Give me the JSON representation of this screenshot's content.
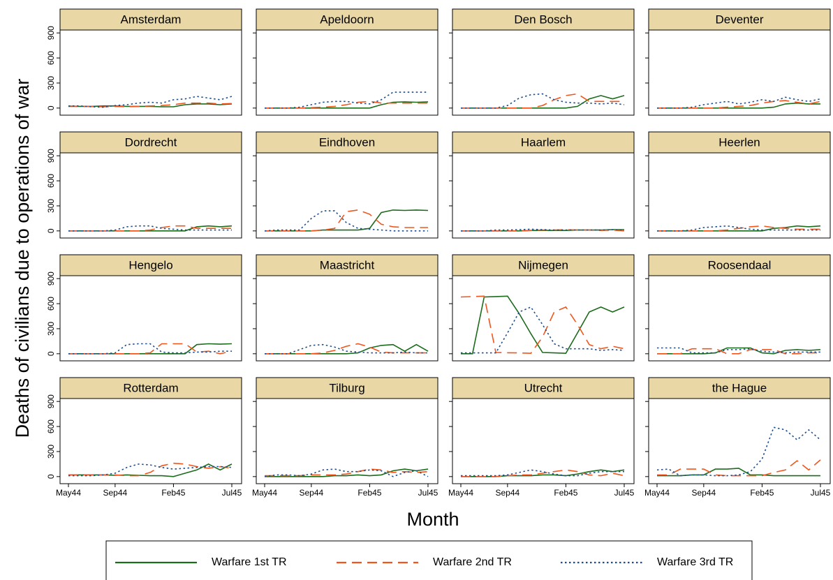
{
  "chart_data": {
    "type": "line",
    "y_label": "Deaths of civilians due to operations of war",
    "x_label": "Month",
    "categories": [
      "May44",
      null,
      null,
      null,
      "Sep44",
      null,
      null,
      null,
      null,
      "Feb45",
      null,
      null,
      null,
      null,
      "Jul45"
    ],
    "ylim": [
      -85,
      935
    ],
    "yticks": [
      0,
      300,
      600,
      900
    ],
    "series": [
      {
        "name": "Warfare 1st TR",
        "color": "#1a6b1a",
        "style": "solid"
      },
      {
        "name": "Warfare 2nd TR",
        "color": "#f0561c",
        "style": "dash"
      },
      {
        "name": "Warfare 3rd TR",
        "color": "#1f4e8c",
        "style": "dot"
      }
    ],
    "panels": [
      {
        "title": "Amsterdam",
        "values": [
          [
            20,
            20,
            20,
            25,
            25,
            20,
            20,
            20,
            15,
            15,
            40,
            50,
            50,
            40,
            50
          ],
          [
            25,
            20,
            20,
            15,
            20,
            15,
            20,
            25,
            30,
            40,
            60,
            60,
            60,
            50,
            55
          ],
          [
            25,
            25,
            15,
            10,
            30,
            40,
            60,
            70,
            60,
            100,
            110,
            140,
            120,
            100,
            140
          ]
        ]
      },
      {
        "title": "Apeldoorn",
        "values": [
          [
            0,
            0,
            0,
            0,
            0,
            0,
            0,
            0,
            0,
            0,
            40,
            70,
            75,
            70,
            75
          ],
          [
            0,
            0,
            0,
            0,
            5,
            10,
            20,
            40,
            70,
            80,
            60,
            60,
            60,
            60,
            60
          ],
          [
            0,
            0,
            0,
            10,
            40,
            70,
            80,
            80,
            60,
            50,
            100,
            190,
            190,
            190,
            190
          ]
        ]
      },
      {
        "title": "Den Bosch",
        "values": [
          [
            0,
            0,
            0,
            0,
            0,
            0,
            0,
            0,
            0,
            0,
            20,
            110,
            150,
            110,
            150
          ],
          [
            0,
            0,
            0,
            0,
            0,
            0,
            0,
            30,
            100,
            150,
            170,
            80,
            80,
            80,
            80
          ],
          [
            0,
            0,
            0,
            0,
            30,
            120,
            160,
            170,
            100,
            70,
            60,
            60,
            50,
            60,
            40
          ]
        ]
      },
      {
        "title": "Deventer",
        "values": [
          [
            0,
            0,
            0,
            0,
            0,
            0,
            0,
            0,
            0,
            0,
            10,
            50,
            60,
            50,
            50
          ],
          [
            0,
            0,
            0,
            0,
            0,
            0,
            10,
            20,
            30,
            60,
            80,
            90,
            70,
            50,
            80
          ],
          [
            0,
            0,
            0,
            10,
            40,
            60,
            80,
            50,
            70,
            100,
            80,
            130,
            100,
            80,
            110
          ]
        ]
      },
      {
        "title": "Dordrecht",
        "values": [
          [
            0,
            0,
            0,
            0,
            0,
            0,
            0,
            0,
            0,
            0,
            0,
            50,
            60,
            50,
            60
          ],
          [
            0,
            0,
            0,
            0,
            0,
            0,
            0,
            10,
            40,
            60,
            60,
            30,
            30,
            30,
            30
          ],
          [
            0,
            0,
            0,
            0,
            10,
            50,
            60,
            60,
            30,
            20,
            10,
            10,
            10,
            10,
            10
          ]
        ]
      },
      {
        "title": "Eindhoven",
        "values": [
          [
            0,
            0,
            0,
            0,
            0,
            10,
            10,
            10,
            10,
            30,
            220,
            250,
            245,
            250,
            245
          ],
          [
            0,
            0,
            0,
            0,
            0,
            10,
            30,
            230,
            250,
            200,
            80,
            50,
            40,
            40,
            40
          ],
          [
            0,
            10,
            10,
            10,
            150,
            240,
            240,
            100,
            30,
            20,
            10,
            0,
            0,
            0,
            0
          ]
        ]
      },
      {
        "title": "Haarlem",
        "values": [
          [
            0,
            0,
            0,
            0,
            0,
            0,
            5,
            5,
            5,
            5,
            10,
            10,
            10,
            15,
            15
          ],
          [
            0,
            0,
            0,
            0,
            0,
            0,
            5,
            10,
            10,
            15,
            10,
            10,
            5,
            10,
            0
          ],
          [
            0,
            0,
            0,
            10,
            10,
            15,
            20,
            15,
            10,
            10,
            10,
            10,
            10,
            15,
            10
          ]
        ]
      },
      {
        "title": "Heerlen",
        "values": [
          [
            0,
            0,
            0,
            0,
            0,
            0,
            0,
            0,
            0,
            0,
            30,
            40,
            60,
            50,
            60
          ],
          [
            0,
            0,
            0,
            0,
            0,
            0,
            10,
            30,
            50,
            60,
            40,
            30,
            20,
            20,
            20
          ],
          [
            0,
            0,
            0,
            10,
            40,
            50,
            60,
            40,
            20,
            10,
            10,
            10,
            10,
            10,
            10
          ]
        ]
      },
      {
        "title": "Hengelo",
        "values": [
          [
            0,
            0,
            0,
            0,
            0,
            0,
            0,
            0,
            0,
            0,
            0,
            110,
            120,
            115,
            120
          ],
          [
            0,
            0,
            0,
            0,
            0,
            0,
            0,
            10,
            120,
            120,
            120,
            20,
            30,
            0,
            30
          ],
          [
            0,
            0,
            0,
            0,
            10,
            110,
            120,
            120,
            20,
            10,
            10,
            20,
            20,
            30,
            30
          ]
        ]
      },
      {
        "title": "Maastricht",
        "values": [
          [
            0,
            0,
            0,
            0,
            0,
            0,
            0,
            0,
            10,
            70,
            100,
            110,
            30,
            110,
            30
          ],
          [
            0,
            0,
            0,
            0,
            0,
            10,
            40,
            90,
            120,
            80,
            20,
            10,
            10,
            10,
            10
          ],
          [
            0,
            0,
            0,
            50,
            100,
            110,
            80,
            30,
            20,
            10,
            10,
            10,
            20,
            10,
            10
          ]
        ]
      },
      {
        "title": "Nijmegen",
        "values": [
          [
            0,
            0,
            680,
            685,
            690,
            480,
            240,
            15,
            10,
            5,
            250,
            500,
            560,
            500,
            560
          ],
          [
            680,
            685,
            690,
            15,
            12,
            10,
            5,
            200,
            500,
            560,
            350,
            110,
            60,
            90,
            60
          ],
          [
            10,
            10,
            10,
            10,
            250,
            500,
            560,
            350,
            120,
            60,
            60,
            60,
            40,
            50,
            40
          ]
        ]
      },
      {
        "title": "Roosendaal",
        "values": [
          [
            0,
            0,
            0,
            0,
            0,
            10,
            70,
            70,
            70,
            10,
            0,
            40,
            50,
            40,
            50
          ],
          [
            0,
            0,
            0,
            60,
            60,
            60,
            0,
            0,
            50,
            50,
            50,
            0,
            0,
            10,
            10
          ],
          [
            70,
            70,
            70,
            10,
            10,
            10,
            50,
            50,
            60,
            30,
            20,
            10,
            20,
            20,
            20
          ]
        ]
      },
      {
        "title": "Rotterdam",
        "values": [
          [
            20,
            20,
            20,
            20,
            15,
            20,
            15,
            10,
            10,
            0,
            40,
            80,
            150,
            80,
            150
          ],
          [
            20,
            20,
            20,
            20,
            20,
            10,
            10,
            50,
            130,
            160,
            150,
            120,
            100,
            120,
            100
          ],
          [
            10,
            10,
            10,
            20,
            40,
            110,
            150,
            140,
            110,
            90,
            100,
            110,
            120,
            120,
            110
          ]
        ]
      },
      {
        "title": "Tilburg",
        "values": [
          [
            0,
            0,
            0,
            0,
            0,
            0,
            10,
            10,
            20,
            10,
            20,
            70,
            90,
            70,
            90
          ],
          [
            10,
            10,
            10,
            10,
            20,
            20,
            20,
            30,
            60,
            90,
            80,
            50,
            60,
            50,
            60
          ],
          [
            0,
            20,
            20,
            10,
            30,
            80,
            90,
            60,
            60,
            80,
            70,
            0,
            50,
            70,
            0
          ]
        ]
      },
      {
        "title": "Utrecht",
        "values": [
          [
            0,
            0,
            0,
            0,
            10,
            10,
            10,
            20,
            20,
            10,
            30,
            60,
            80,
            60,
            80
          ],
          [
            0,
            0,
            0,
            0,
            10,
            20,
            20,
            40,
            60,
            80,
            60,
            20,
            10,
            40,
            10
          ],
          [
            10,
            10,
            10,
            10,
            20,
            50,
            80,
            60,
            30,
            10,
            10,
            40,
            60,
            60,
            60
          ]
        ]
      },
      {
        "title": "the Hague",
        "values": [
          [
            10,
            10,
            10,
            20,
            20,
            90,
            90,
            100,
            20,
            20,
            10,
            10,
            10,
            10,
            10
          ],
          [
            20,
            20,
            90,
            90,
            90,
            20,
            10,
            10,
            10,
            10,
            50,
            80,
            190,
            80,
            200
          ],
          [
            80,
            90,
            10,
            20,
            20,
            10,
            10,
            20,
            60,
            210,
            590,
            560,
            440,
            560,
            440
          ]
        ]
      }
    ]
  }
}
